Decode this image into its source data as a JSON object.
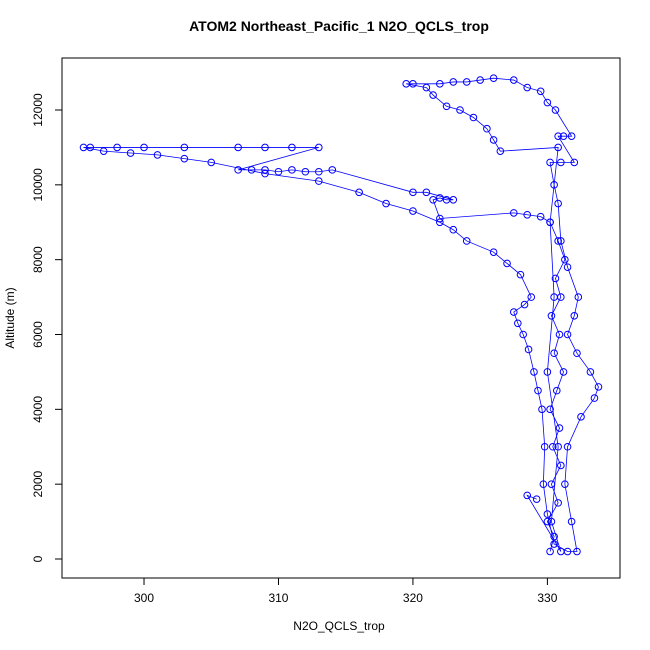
{
  "chart_data": {
    "type": "scatter",
    "title": "ATOM2 Northeast_Pacific_1 N2O_QCLS_trop",
    "x_label": "N2O_QCLS_trop",
    "y_label": "Altitude (m)",
    "color": "blue",
    "connect": true,
    "x": [
      330.2,
      330.5,
      330.0,
      330.8,
      330.3,
      331.0,
      330.4,
      330.9,
      330.2,
      330.7,
      331.2,
      330.5,
      330.9,
      330.3,
      331.0,
      330.6,
      331.3,
      330.8,
      330.2,
      329.5,
      328.5,
      327.5,
      322,
      321.5,
      322,
      322.5,
      323,
      321,
      320,
      314,
      313,
      312,
      311,
      310,
      309,
      308,
      307,
      313,
      311,
      309,
      307,
      303,
      300,
      298,
      296,
      295.5,
      297,
      299,
      301,
      303,
      305,
      309,
      313,
      316,
      318,
      320,
      322,
      323,
      324,
      326,
      327,
      328,
      328.8,
      328.3,
      327.5,
      327.8,
      328.2,
      328.6,
      329.0,
      329.3,
      329.6,
      329.8,
      329.7,
      330.0,
      330.5,
      331.5,
      332.2,
      331.8,
      331.3,
      331.5,
      332.5,
      333.5,
      333.8,
      333.2,
      332.2,
      331.5,
      332.0,
      332.3,
      331.5,
      331.0,
      330.8,
      330.5,
      330.2,
      331.0,
      332.0,
      330.8,
      331.2,
      331.8,
      330.6,
      330.0,
      329.5,
      328.5,
      327.5,
      326,
      325,
      324,
      323,
      322,
      320,
      319.5,
      321,
      321.5,
      322.5,
      323.5,
      324.5,
      325.5,
      326,
      326.5,
      330.8,
      330.2,
      330.5,
      330.0,
      330.8,
      330.3,
      331.0,
      328.5,
      329.2
    ],
    "values": [
      200,
      600,
      1000,
      1500,
      2000,
      2500,
      3000,
      3500,
      4000,
      4500,
      5000,
      5500,
      6000,
      6500,
      7000,
      7500,
      8000,
      8500,
      9000,
      9150,
      9200,
      9250,
      9100,
      9600,
      9650,
      9600,
      9600,
      9800,
      9800,
      10400,
      10350,
      10350,
      10400,
      10350,
      10400,
      10400,
      10400,
      11000,
      11000,
      11000,
      11000,
      11000,
      11000,
      11000,
      11000,
      11000,
      10900,
      10850,
      10800,
      10700,
      10600,
      10300,
      10100,
      9800,
      9500,
      9300,
      9000,
      8800,
      8500,
      8200,
      7900,
      7600,
      7000,
      6800,
      6600,
      6300,
      6000,
      5600,
      5000,
      4500,
      4000,
      3000,
      2000,
      1200,
      400,
      200,
      200,
      1000,
      2000,
      3000,
      3800,
      4300,
      4600,
      5000,
      5500,
      6000,
      6500,
      7000,
      7800,
      8500,
      9500,
      10000,
      10600,
      10600,
      10600,
      11300,
      11300,
      11300,
      12000,
      12200,
      12500,
      12600,
      12800,
      12850,
      12800,
      12750,
      12750,
      12700,
      12700,
      12700,
      12600,
      12400,
      12100,
      12000,
      11800,
      11500,
      11200,
      10900,
      11000,
      9000,
      7000,
      5000,
      3000,
      1000,
      200,
      1700,
      1600
    ],
    "xlim": [
      293.9,
      335.4
    ],
    "ylim": [
      -508,
      13390
    ],
    "xticks": [
      300,
      310,
      320,
      330
    ],
    "yticks": [
      0,
      2000,
      4000,
      6000,
      8000,
      10000,
      12000
    ]
  }
}
